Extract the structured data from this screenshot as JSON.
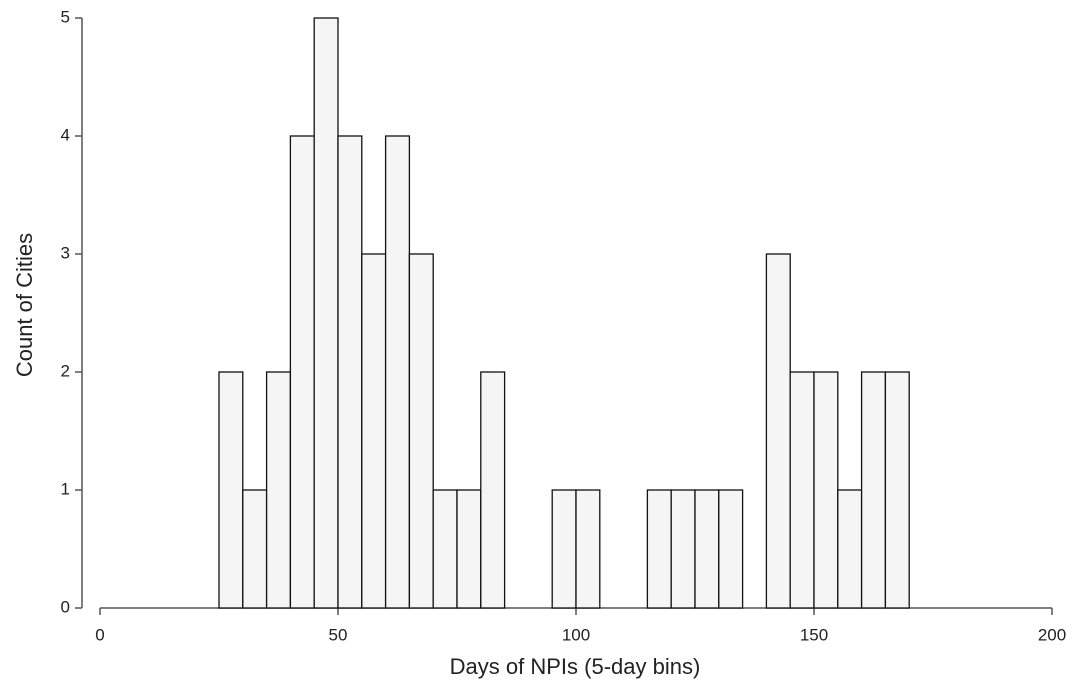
{
  "chart_data": {
    "type": "histogram",
    "x_label": "Days of NPIs (5-day bins)",
    "y_label": "Count of Cities",
    "bins": [
      25,
      30,
      35,
      40,
      45,
      50,
      55,
      60,
      65,
      70,
      75,
      80,
      85,
      90,
      95,
      100,
      105,
      110,
      115,
      120,
      125,
      130,
      135,
      140,
      145,
      150,
      155,
      160,
      165,
      170
    ],
    "values": [
      2,
      1,
      2,
      4,
      5,
      4,
      3,
      4,
      3,
      1,
      1,
      2,
      0,
      0,
      1,
      1,
      0,
      0,
      1,
      1,
      1,
      1,
      0,
      3,
      2,
      2,
      1,
      2,
      2
    ],
    "color": "#f5f5f5",
    "xlim": [
      0,
      200
    ],
    "xticks": [
      0,
      50,
      100,
      150,
      200
    ],
    "ylim": [
      0,
      5
    ],
    "yticks": [
      0,
      1,
      2,
      3,
      4,
      5
    ]
  }
}
